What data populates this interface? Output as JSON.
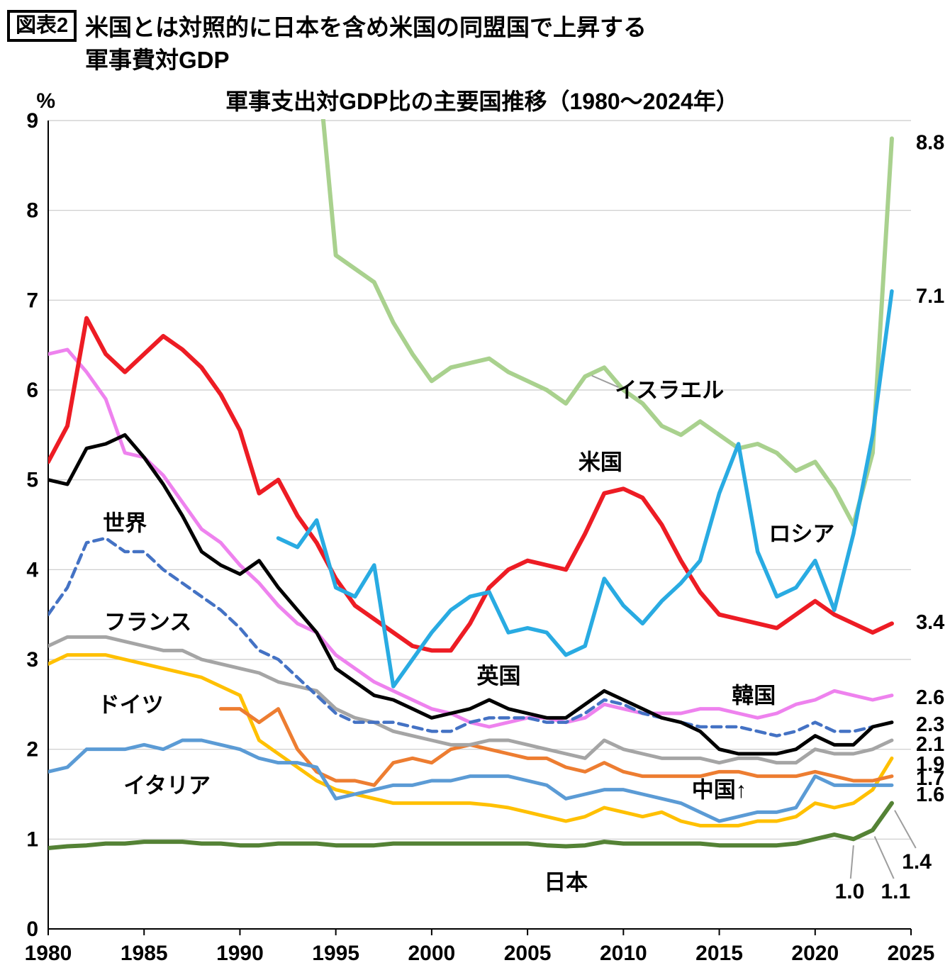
{
  "page": {
    "badge": "図表2",
    "title_line1": "米国とは対照的に日本を含め米国の同盟国で上昇する",
    "title_line2": "軍事費対GDP",
    "subtitle": "軍事支出対GDP比の主要国推移（1980〜2024年）",
    "y_unit_label": "%"
  },
  "chart_data": {
    "type": "line",
    "title": "軍事支出対GDP比の主要国推移（1980〜2024年）",
    "xlabel": "",
    "ylabel": "%",
    "xlim": [
      1980,
      2025
    ],
    "ylim": [
      0,
      9
    ],
    "x_ticks": [
      1980,
      1985,
      1990,
      1995,
      2000,
      2005,
      2010,
      2015,
      2020,
      2025
    ],
    "y_ticks": [
      0,
      1,
      2,
      3,
      4,
      5,
      6,
      7,
      8,
      9
    ],
    "grid": "horizontal",
    "legend_position": "in-chart-labels",
    "series": [
      {
        "id": "israel",
        "name": "イスラエル",
        "color": "#a9d18e",
        "width": 6,
        "dash": null,
        "start_year": 1993,
        "end_label": "8.8",
        "end_label_y": 8.76,
        "values": [
          11.5,
          9.8,
          7.5,
          7.35,
          7.2,
          6.75,
          6.4,
          6.1,
          6.25,
          6.3,
          6.35,
          6.2,
          6.1,
          6.0,
          5.85,
          6.15,
          6.25,
          6.0,
          5.85,
          5.6,
          5.5,
          5.65,
          5.5,
          5.35,
          5.4,
          5.3,
          5.1,
          5.2,
          4.9,
          4.5,
          5.3,
          8.8
        ]
      },
      {
        "id": "korea",
        "name": "韓国",
        "color": "#ee82ee",
        "width": 5,
        "dash": null,
        "start_year": 1980,
        "end_label": "2.6",
        "end_label_y": 2.58,
        "values": [
          6.4,
          6.45,
          6.2,
          5.9,
          5.3,
          5.25,
          5.05,
          4.75,
          4.45,
          4.3,
          4.05,
          3.85,
          3.6,
          3.4,
          3.3,
          3.05,
          2.9,
          2.75,
          2.65,
          2.55,
          2.45,
          2.4,
          2.3,
          2.25,
          2.3,
          2.35,
          2.35,
          2.3,
          2.35,
          2.5,
          2.45,
          2.4,
          2.4,
          2.4,
          2.45,
          2.45,
          2.4,
          2.35,
          2.4,
          2.5,
          2.55,
          2.65,
          2.6,
          2.55,
          2.6
        ]
      },
      {
        "id": "germany",
        "name": "ドイツ",
        "color": "#ffc000",
        "width": 5,
        "dash": null,
        "start_year": 1980,
        "end_label": "1.9",
        "end_label_y": 1.84,
        "values": [
          2.95,
          3.05,
          3.05,
          3.05,
          3.0,
          2.95,
          2.9,
          2.85,
          2.8,
          2.7,
          2.6,
          2.1,
          1.95,
          1.8,
          1.65,
          1.55,
          1.5,
          1.45,
          1.4,
          1.4,
          1.4,
          1.4,
          1.4,
          1.38,
          1.35,
          1.3,
          1.25,
          1.2,
          1.25,
          1.35,
          1.3,
          1.25,
          1.3,
          1.2,
          1.15,
          1.15,
          1.15,
          1.2,
          1.2,
          1.25,
          1.4,
          1.35,
          1.4,
          1.55,
          1.9
        ]
      },
      {
        "id": "china",
        "name": "中国",
        "color": "#ed7d31",
        "width": 5,
        "dash": null,
        "start_year": 1989,
        "end_label": "1.7",
        "end_label_y": 1.68,
        "values": [
          2.45,
          2.45,
          2.3,
          2.45,
          2.0,
          1.75,
          1.65,
          1.65,
          1.6,
          1.85,
          1.9,
          1.85,
          2.0,
          2.05,
          2.0,
          1.95,
          1.9,
          1.9,
          1.8,
          1.75,
          1.85,
          1.75,
          1.7,
          1.7,
          1.7,
          1.7,
          1.75,
          1.75,
          1.7,
          1.7,
          1.7,
          1.75,
          1.7,
          1.65,
          1.65,
          1.7
        ]
      },
      {
        "id": "italy",
        "name": "イタリア",
        "color": "#5b9bd5",
        "width": 5,
        "dash": null,
        "start_year": 1980,
        "end_label": "1.6",
        "end_label_y": 1.5,
        "values": [
          1.75,
          1.8,
          2.0,
          2.0,
          2.0,
          2.05,
          2.0,
          2.1,
          2.1,
          2.05,
          2.0,
          1.9,
          1.85,
          1.85,
          1.8,
          1.45,
          1.5,
          1.55,
          1.6,
          1.6,
          1.65,
          1.65,
          1.7,
          1.7,
          1.7,
          1.65,
          1.6,
          1.45,
          1.5,
          1.55,
          1.55,
          1.5,
          1.45,
          1.4,
          1.3,
          1.2,
          1.25,
          1.3,
          1.3,
          1.35,
          1.7,
          1.6,
          1.6,
          1.6,
          1.6
        ]
      },
      {
        "id": "france",
        "name": "フランス",
        "color": "#a5a5a5",
        "width": 5,
        "dash": null,
        "start_year": 1980,
        "end_label": "2.1",
        "end_label_y": 2.06,
        "values": [
          3.15,
          3.25,
          3.25,
          3.25,
          3.2,
          3.15,
          3.1,
          3.1,
          3.0,
          2.95,
          2.9,
          2.85,
          2.75,
          2.7,
          2.65,
          2.45,
          2.35,
          2.3,
          2.2,
          2.15,
          2.1,
          2.05,
          2.05,
          2.1,
          2.1,
          2.05,
          2.0,
          1.95,
          1.9,
          2.1,
          2.0,
          1.95,
          1.9,
          1.9,
          1.9,
          1.85,
          1.9,
          1.9,
          1.85,
          1.85,
          2.0,
          1.95,
          1.95,
          2.0,
          2.1
        ]
      },
      {
        "id": "world",
        "name": "世界",
        "color": "#4472c4",
        "width": 4.5,
        "dash": "13 8",
        "start_year": 1980,
        "end_label": "2.3",
        "end_label_y": 2.28,
        "values": [
          3.5,
          3.8,
          4.3,
          4.35,
          4.2,
          4.2,
          4.0,
          3.85,
          3.7,
          3.55,
          3.35,
          3.1,
          3.0,
          2.8,
          2.6,
          2.4,
          2.3,
          2.3,
          2.3,
          2.25,
          2.2,
          2.2,
          2.3,
          2.35,
          2.35,
          2.35,
          2.3,
          2.3,
          2.4,
          2.55,
          2.5,
          2.4,
          2.35,
          2.3,
          2.25,
          2.25,
          2.25,
          2.2,
          2.15,
          2.2,
          2.3,
          2.2,
          2.2,
          2.25,
          2.3
        ]
      },
      {
        "id": "uk",
        "name": "英国",
        "color": "#000000",
        "width": 5,
        "dash": null,
        "start_year": 1980,
        "end_label": "",
        "end_label_y": null,
        "values": [
          5.0,
          4.95,
          5.35,
          5.4,
          5.5,
          5.25,
          4.95,
          4.6,
          4.2,
          4.05,
          3.95,
          4.1,
          3.8,
          3.55,
          3.3,
          2.9,
          2.75,
          2.6,
          2.55,
          2.45,
          2.35,
          2.4,
          2.45,
          2.55,
          2.45,
          2.4,
          2.35,
          2.35,
          2.5,
          2.65,
          2.55,
          2.45,
          2.35,
          2.3,
          2.2,
          2.0,
          1.95,
          1.95,
          1.95,
          2.0,
          2.15,
          2.05,
          2.05,
          2.25,
          2.3
        ]
      },
      {
        "id": "usa",
        "name": "米国",
        "color": "#ed1c24",
        "width": 6,
        "dash": null,
        "start_year": 1980,
        "end_label": "3.4",
        "end_label_y": 3.42,
        "values": [
          5.2,
          5.6,
          6.8,
          6.4,
          6.2,
          6.4,
          6.6,
          6.45,
          6.25,
          5.95,
          5.55,
          4.85,
          5.0,
          4.6,
          4.3,
          3.9,
          3.6,
          3.45,
          3.3,
          3.15,
          3.1,
          3.1,
          3.4,
          3.8,
          4.0,
          4.1,
          4.05,
          4.0,
          4.4,
          4.85,
          4.9,
          4.8,
          4.5,
          4.1,
          3.75,
          3.5,
          3.45,
          3.4,
          3.35,
          3.5,
          3.65,
          3.5,
          3.4,
          3.3,
          3.4
        ]
      },
      {
        "id": "russia",
        "name": "ロシア",
        "color": "#29abe2",
        "width": 5.5,
        "dash": null,
        "start_year": 1992,
        "end_label": "7.1",
        "end_label_y": 7.05,
        "values": [
          4.35,
          4.25,
          4.55,
          3.8,
          3.7,
          4.05,
          2.7,
          3.0,
          3.3,
          3.55,
          3.7,
          3.75,
          3.3,
          3.35,
          3.3,
          3.05,
          3.15,
          3.9,
          3.6,
          3.4,
          3.65,
          3.85,
          4.1,
          4.85,
          5.4,
          4.2,
          3.7,
          3.8,
          4.1,
          3.55,
          4.4,
          5.5,
          7.1
        ]
      },
      {
        "id": "japan",
        "name": "日本",
        "color": "#548235",
        "width": 6,
        "dash": null,
        "start_year": 1980,
        "end_label": "",
        "end_label_y": null,
        "values": [
          0.9,
          0.92,
          0.93,
          0.95,
          0.95,
          0.97,
          0.97,
          0.97,
          0.95,
          0.95,
          0.93,
          0.93,
          0.95,
          0.95,
          0.95,
          0.93,
          0.93,
          0.93,
          0.95,
          0.95,
          0.95,
          0.95,
          0.95,
          0.95,
          0.95,
          0.95,
          0.93,
          0.92,
          0.93,
          0.97,
          0.95,
          0.95,
          0.95,
          0.95,
          0.95,
          0.93,
          0.93,
          0.93,
          0.93,
          0.95,
          1.0,
          1.05,
          1.0,
          1.1,
          1.4
        ]
      }
    ],
    "series_labels": [
      {
        "text": "世界",
        "x": 1984.0,
        "y": 4.52
      },
      {
        "text": "フランス",
        "x": 1985.2,
        "y": 3.42
      },
      {
        "text": "ドイツ",
        "x": 1984.3,
        "y": 2.5
      },
      {
        "text": "イタリア",
        "x": 1986.2,
        "y": 1.6
      },
      {
        "text": "英国",
        "x": 2003.5,
        "y": 2.82
      },
      {
        "text": "日本",
        "x": 2007.0,
        "y": 0.52
      },
      {
        "text": "米国",
        "x": 2008.8,
        "y": 5.2
      },
      {
        "text": "イスラエル",
        "x": 2012.4,
        "y": 6.0
      },
      {
        "text": "韓国",
        "x": 2016.8,
        "y": 2.6
      },
      {
        "text": "中国↑",
        "x": 2015.0,
        "y": 1.55
      },
      {
        "text": "ロシア",
        "x": 2019.3,
        "y": 4.4
      }
    ],
    "annotations": [
      {
        "text": "1.0",
        "x": 2021.8,
        "y": 0.42,
        "leader": [
          [
            2022.0,
            0.93
          ],
          [
            2021.85,
            0.56
          ]
        ]
      },
      {
        "text": "1.1",
        "x": 2024.2,
        "y": 0.42,
        "leader": [
          [
            2023.1,
            1.03
          ],
          [
            2024.1,
            0.56
          ]
        ]
      },
      {
        "text": "1.4",
        "x": 2025.3,
        "y": 0.75,
        "leader": [
          [
            2024.15,
            1.32
          ],
          [
            2025.25,
            0.9
          ]
        ]
      },
      {
        "text": "",
        "x": 0,
        "y": 0,
        "leader": [
          [
            2008.35,
            6.16
          ],
          [
            2009.75,
            6.03
          ]
        ]
      }
    ],
    "colors": {
      "grid": "#c9c9c9",
      "axis": "#000000",
      "leader": "#9e9e9e",
      "label_text": "#000000"
    }
  }
}
